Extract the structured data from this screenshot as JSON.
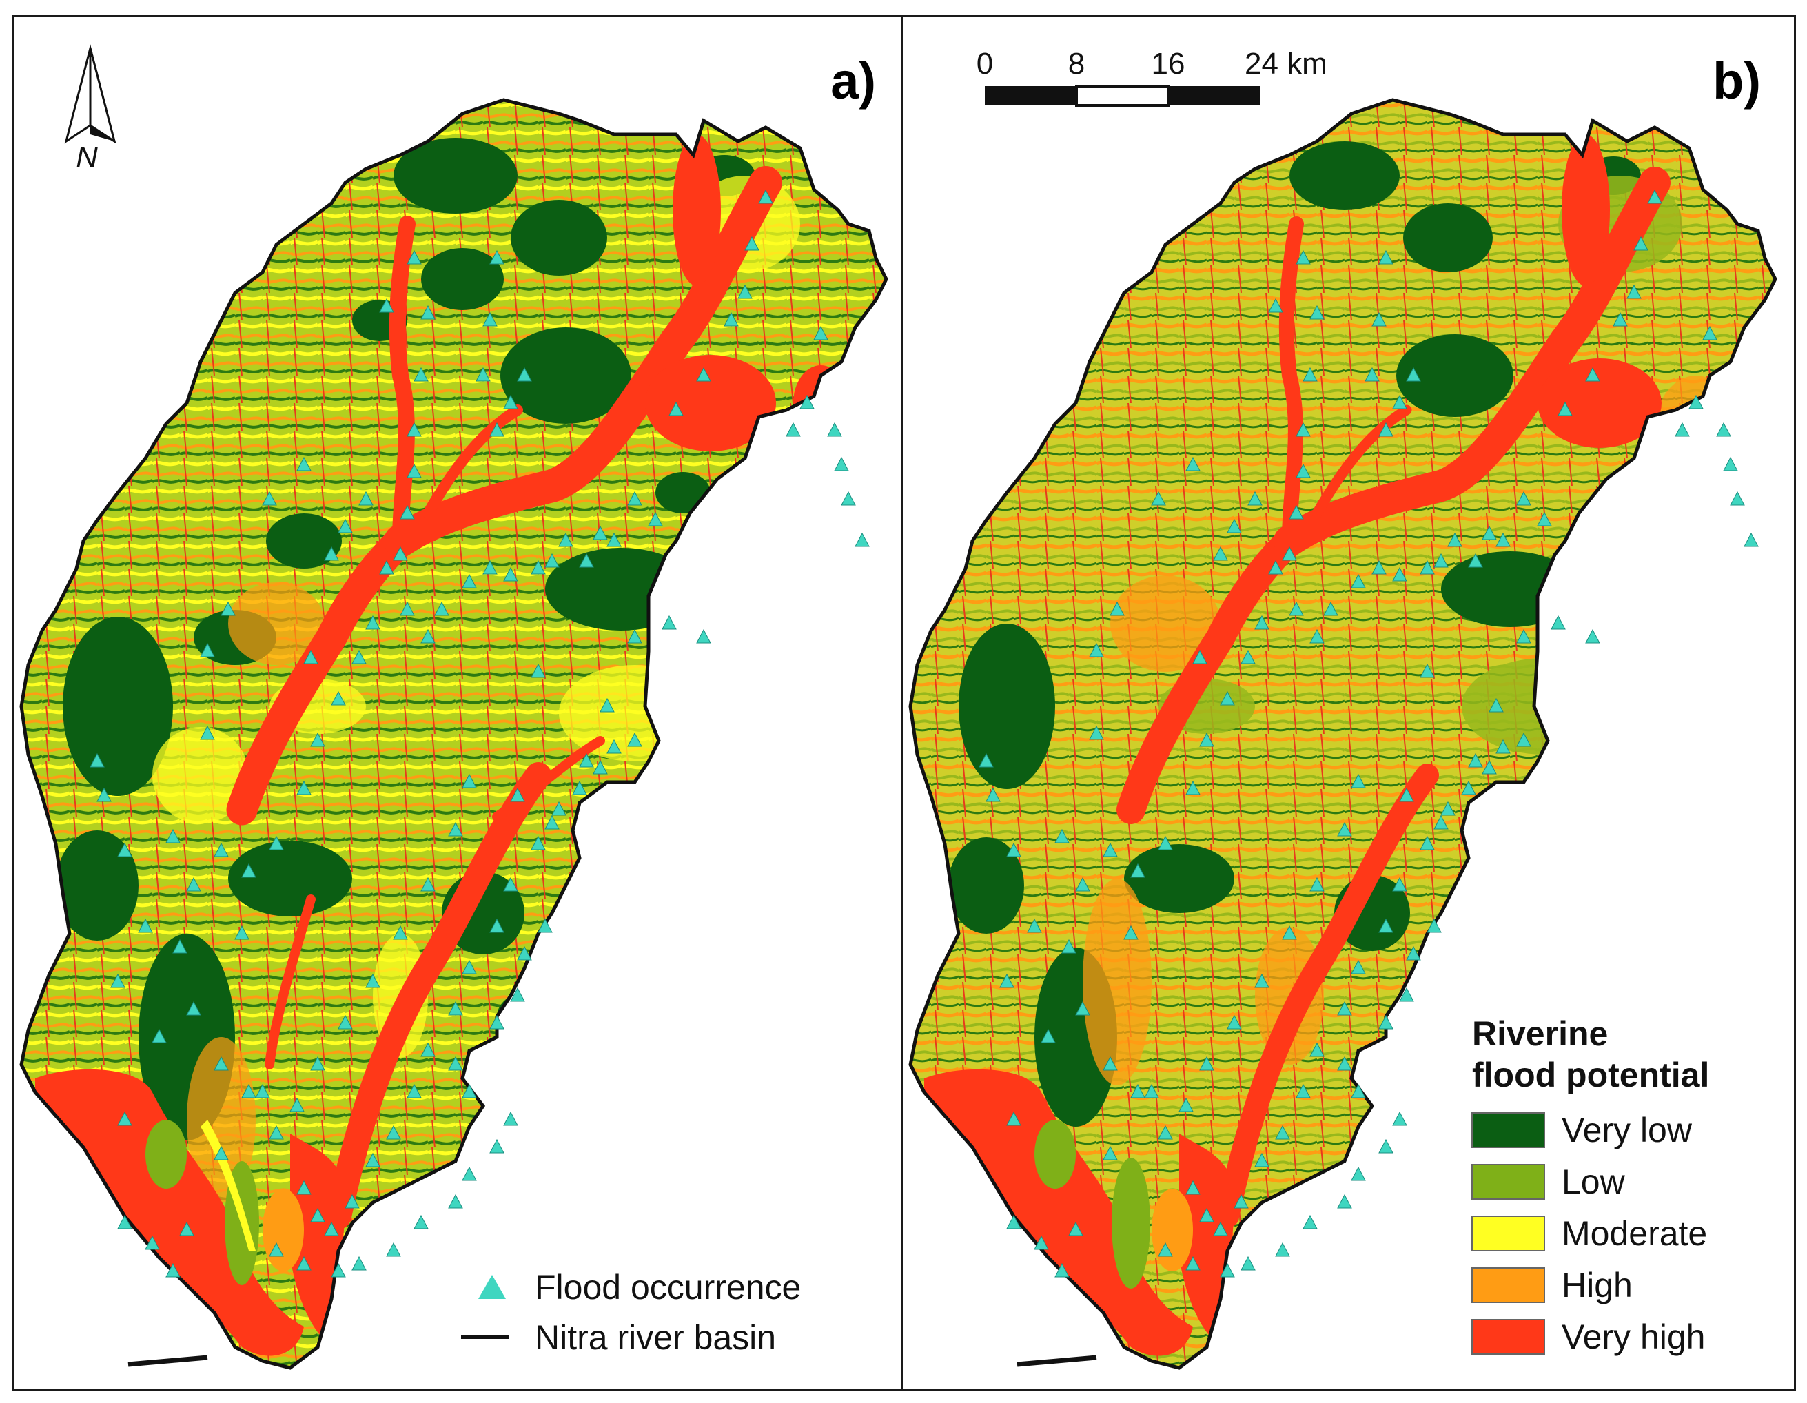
{
  "panels": [
    {
      "label": "a)"
    },
    {
      "label": "b)"
    }
  ],
  "north_arrow": {
    "letter": "N",
    "icon": "north-arrow-icon"
  },
  "scale_bar": {
    "ticks": [
      "0",
      "8",
      "16",
      "24 km"
    ]
  },
  "legend_a": {
    "items": [
      {
        "label": "Flood occurrence",
        "icon": "triangle-marker-icon",
        "color": "#3fd6c0"
      },
      {
        "label": "Nitra river basin",
        "icon": "line-icon",
        "color": "#111111"
      }
    ]
  },
  "legend_b": {
    "title_line1": "Riverine",
    "title_line2": "flood potential",
    "classes": [
      {
        "label": "Very low",
        "color": "#0b5e13"
      },
      {
        "label": "Low",
        "color": "#7fb018"
      },
      {
        "label": "Moderate",
        "color": "#ffff22"
      },
      {
        "label": "High",
        "color": "#ff9c14"
      },
      {
        "label": "Very high",
        "color": "#ff3818"
      }
    ]
  },
  "colors": {
    "very_low": "#0b5e13",
    "low": "#7fb018",
    "moderate": "#ffff22",
    "high": "#ff9c14",
    "very_high": "#ff3818",
    "flood_marker": "#3fd6c0",
    "basin_outline": "#111111"
  }
}
